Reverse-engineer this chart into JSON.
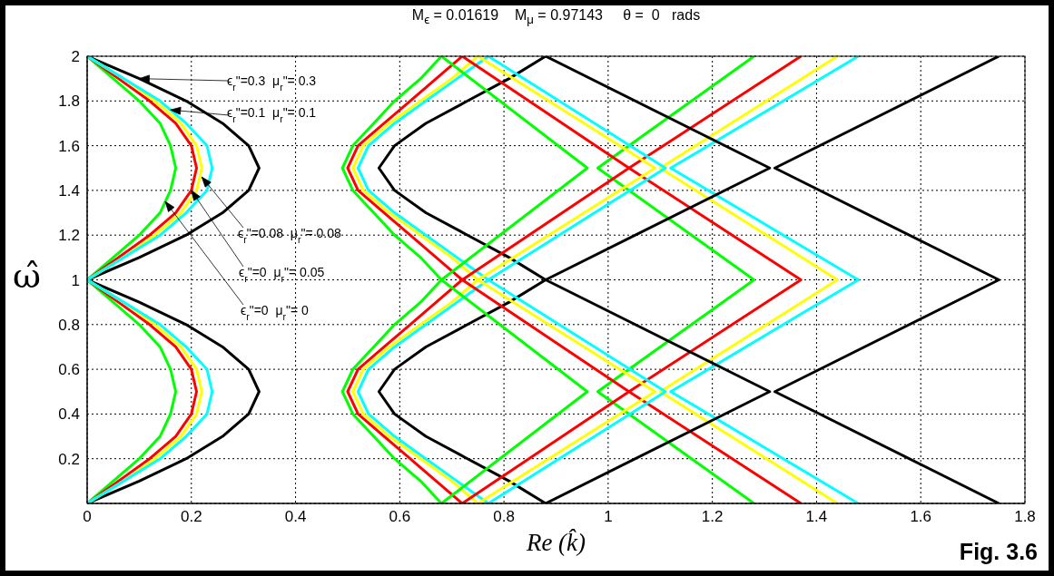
{
  "chart_data": {
    "type": "line",
    "title": "M$_{ϵ}$ = 0.01619    M$_{μ}$ = 0.97143     θ =  0   rads",
    "xlabel": "Re (k̂)",
    "ylabel": "ω̂",
    "xlim": [
      0,
      1.8
    ],
    "xticks": [
      0,
      0.2,
      0.4,
      0.6,
      0.8,
      1,
      1.2,
      1.4,
      1.6,
      1.8
    ],
    "ylim": [
      0,
      2
    ],
    "yticks": [
      0.2,
      0.4,
      0.6,
      0.8,
      1,
      1.2,
      1.4,
      1.6,
      1.8,
      2
    ],
    "grid": true,
    "series": [
      {
        "color": "#000000",
        "x": [
          0,
          0.1,
          0.19,
          0.26,
          0.31,
          0.33,
          0.31,
          0.26,
          0.19,
          0.1,
          0,
          0.1,
          0.19,
          0.26,
          0.31,
          0.33,
          0.31,
          0.26,
          0.19,
          0.1,
          0
        ],
        "values": [
          0,
          0.1,
          0.2,
          0.3,
          0.4,
          0.5,
          0.6,
          0.7,
          0.8,
          0.9,
          1,
          1.1,
          1.2,
          1.3,
          1.4,
          1.5,
          1.6,
          1.7,
          1.8,
          1.9,
          2
        ]
      },
      {
        "color": "#00ff00",
        "x": [
          0,
          0.05,
          0.1,
          0.14,
          0.16,
          0.17,
          0.16,
          0.14,
          0.1,
          0.05,
          0,
          0.05,
          0.1,
          0.14,
          0.16,
          0.17,
          0.16,
          0.14,
          0.1,
          0.05,
          0
        ],
        "values": [
          0,
          0.1,
          0.2,
          0.3,
          0.4,
          0.5,
          0.6,
          0.7,
          0.8,
          0.9,
          1,
          1.1,
          1.2,
          1.3,
          1.4,
          1.5,
          1.6,
          1.7,
          1.8,
          1.9,
          2
        ]
      },
      {
        "color": "#ff0000",
        "x": [
          0,
          0.06,
          0.12,
          0.17,
          0.2,
          0.21,
          0.2,
          0.17,
          0.12,
          0.06,
          0,
          0.06,
          0.12,
          0.17,
          0.2,
          0.21,
          0.2,
          0.17,
          0.12,
          0.06,
          0
        ],
        "values": [
          0,
          0.1,
          0.2,
          0.3,
          0.4,
          0.5,
          0.6,
          0.7,
          0.8,
          0.9,
          1,
          1.1,
          1.2,
          1.3,
          1.4,
          1.5,
          1.6,
          1.7,
          1.8,
          1.9,
          2
        ]
      },
      {
        "color": "#ffff00",
        "x": [
          0,
          0.07,
          0.13,
          0.18,
          0.21,
          0.22,
          0.21,
          0.18,
          0.13,
          0.07,
          0,
          0.07,
          0.13,
          0.18,
          0.21,
          0.22,
          0.21,
          0.18,
          0.13,
          0.07,
          0
        ],
        "values": [
          0,
          0.1,
          0.2,
          0.3,
          0.4,
          0.5,
          0.6,
          0.7,
          0.8,
          0.9,
          1,
          1.1,
          1.2,
          1.3,
          1.4,
          1.5,
          1.6,
          1.7,
          1.8,
          1.9,
          2
        ]
      },
      {
        "color": "#00ffff",
        "x": [
          0,
          0.07,
          0.14,
          0.19,
          0.23,
          0.24,
          0.23,
          0.19,
          0.14,
          0.07,
          0,
          0.07,
          0.14,
          0.19,
          0.23,
          0.24,
          0.23,
          0.19,
          0.14,
          0.07,
          0
        ],
        "values": [
          0,
          0.1,
          0.2,
          0.3,
          0.4,
          0.5,
          0.6,
          0.7,
          0.8,
          0.9,
          1,
          1.1,
          1.2,
          1.3,
          1.4,
          1.5,
          1.6,
          1.7,
          1.8,
          1.9,
          2
        ]
      },
      {
        "color": "#00ff00",
        "x": [
          0.68,
          0.64,
          0.59,
          0.55,
          0.51,
          0.49,
          0.51,
          0.55,
          0.59,
          0.64,
          0.68,
          0.64,
          0.59,
          0.55,
          0.51,
          0.49,
          0.51,
          0.55,
          0.59,
          0.64,
          0.68
        ],
        "values": [
          0,
          0.1,
          0.2,
          0.3,
          0.4,
          0.5,
          0.6,
          0.7,
          0.8,
          0.9,
          1,
          1.1,
          1.2,
          1.3,
          1.4,
          1.5,
          1.6,
          1.7,
          1.8,
          1.9,
          2
        ]
      },
      {
        "color": "#ff0000",
        "x": [
          0.72,
          0.67,
          0.62,
          0.57,
          0.52,
          0.5,
          0.52,
          0.57,
          0.62,
          0.67,
          0.72,
          0.67,
          0.62,
          0.57,
          0.52,
          0.5,
          0.52,
          0.57,
          0.62,
          0.67,
          0.72
        ],
        "values": [
          0,
          0.1,
          0.2,
          0.3,
          0.4,
          0.5,
          0.6,
          0.7,
          0.8,
          0.9,
          1,
          1.1,
          1.2,
          1.3,
          1.4,
          1.5,
          1.6,
          1.7,
          1.8,
          1.9,
          2
        ]
      },
      {
        "color": "#ffff00",
        "x": [
          0.75,
          0.7,
          0.64,
          0.58,
          0.53,
          0.51,
          0.53,
          0.58,
          0.64,
          0.7,
          0.75,
          0.7,
          0.64,
          0.58,
          0.53,
          0.51,
          0.53,
          0.58,
          0.64,
          0.7,
          0.75
        ],
        "values": [
          0,
          0.1,
          0.2,
          0.3,
          0.4,
          0.5,
          0.6,
          0.7,
          0.8,
          0.9,
          1,
          1.1,
          1.2,
          1.3,
          1.4,
          1.5,
          1.6,
          1.7,
          1.8,
          1.9,
          2
        ]
      },
      {
        "color": "#00ffff",
        "x": [
          0.77,
          0.71,
          0.65,
          0.59,
          0.54,
          0.52,
          0.54,
          0.59,
          0.65,
          0.71,
          0.77,
          0.71,
          0.65,
          0.59,
          0.54,
          0.52,
          0.54,
          0.59,
          0.65,
          0.71,
          0.77
        ],
        "values": [
          0,
          0.1,
          0.2,
          0.3,
          0.4,
          0.5,
          0.6,
          0.7,
          0.8,
          0.9,
          1,
          1.1,
          1.2,
          1.3,
          1.4,
          1.5,
          1.6,
          1.7,
          1.8,
          1.9,
          2
        ]
      },
      {
        "color": "#000000",
        "x": [
          0.88,
          0.81,
          0.73,
          0.65,
          0.59,
          0.56,
          0.59,
          0.65,
          0.73,
          0.81,
          0.88,
          0.81,
          0.73,
          0.65,
          0.59,
          0.56,
          0.59,
          0.65,
          0.73,
          0.81,
          0.88
        ],
        "values": [
          0,
          0.1,
          0.2,
          0.3,
          0.4,
          0.5,
          0.6,
          0.7,
          0.8,
          0.9,
          1,
          1.1,
          1.2,
          1.3,
          1.4,
          1.5,
          1.6,
          1.7,
          1.8,
          1.9,
          2
        ]
      },
      {
        "color": "#00ff00",
        "x": [
          0.68,
          0.96,
          0.68,
          0.96,
          0.68
        ],
        "values": [
          0,
          0.5,
          1,
          1.5,
          2
        ]
      },
      {
        "color": "#00ff00",
        "x": [
          1.28,
          0.98,
          1.28,
          0.98,
          1.28
        ],
        "values": [
          0,
          0.5,
          1,
          1.5,
          2
        ]
      },
      {
        "color": "#ff0000",
        "x": [
          0.72,
          1.04,
          0.72,
          1.04,
          0.72
        ],
        "values": [
          0,
          0.5,
          1,
          1.5,
          2
        ]
      },
      {
        "color": "#ff0000",
        "x": [
          1.37,
          1.04,
          1.37,
          1.04,
          1.37
        ],
        "values": [
          0,
          0.5,
          1,
          1.5,
          2
        ]
      },
      {
        "color": "#ffff00",
        "x": [
          0.75,
          1.09,
          0.75,
          1.09,
          0.75
        ],
        "values": [
          0,
          0.5,
          1,
          1.5,
          2
        ]
      },
      {
        "color": "#ffff00",
        "x": [
          1.44,
          1.1,
          1.44,
          1.1,
          1.44
        ],
        "values": [
          0,
          0.5,
          1,
          1.5,
          2
        ]
      },
      {
        "color": "#00ffff",
        "x": [
          0.77,
          1.11,
          0.77,
          1.11,
          0.77
        ],
        "values": [
          0,
          0.5,
          1,
          1.5,
          2
        ]
      },
      {
        "color": "#00ffff",
        "x": [
          1.48,
          1.12,
          1.48,
          1.12,
          1.48
        ],
        "values": [
          0,
          0.5,
          1,
          1.5,
          2
        ]
      },
      {
        "color": "#000000",
        "x": [
          0.88,
          1.31,
          0.88,
          1.31,
          0.88
        ],
        "values": [
          0,
          0.5,
          1,
          1.5,
          2
        ]
      },
      {
        "color": "#000000",
        "x": [
          1.75,
          1.32,
          1.75,
          1.32,
          1.75
        ],
        "values": [
          0,
          0.5,
          1,
          1.5,
          2
        ]
      }
    ],
    "annotations": [
      {
        "text": "ϵ$_{r}$\"=0.3  μ$_{r}$\"= 0.3",
        "x": 0.1,
        "y": 1.9
      },
      {
        "text": "ϵ$_{r}$\"=0.1  μ$_{r}$\"= 0.1",
        "x": 0.16,
        "y": 1.76
      },
      {
        "text": "ϵ$_{r}$\"=0.08  μ$_{r}$\"= 0.08",
        "x": 0.22,
        "y": 1.46
      },
      {
        "text": "ϵ$_{r}$\"=0  μ$_{r}$\"= 0.05",
        "x": 0.2,
        "y": 1.4
      },
      {
        "text": "ϵ$_{r}$\"=0  μ$_{r}$\"= 0",
        "x": 0.15,
        "y": 1.35
      },
      "Fig. 3.6"
    ]
  }
}
